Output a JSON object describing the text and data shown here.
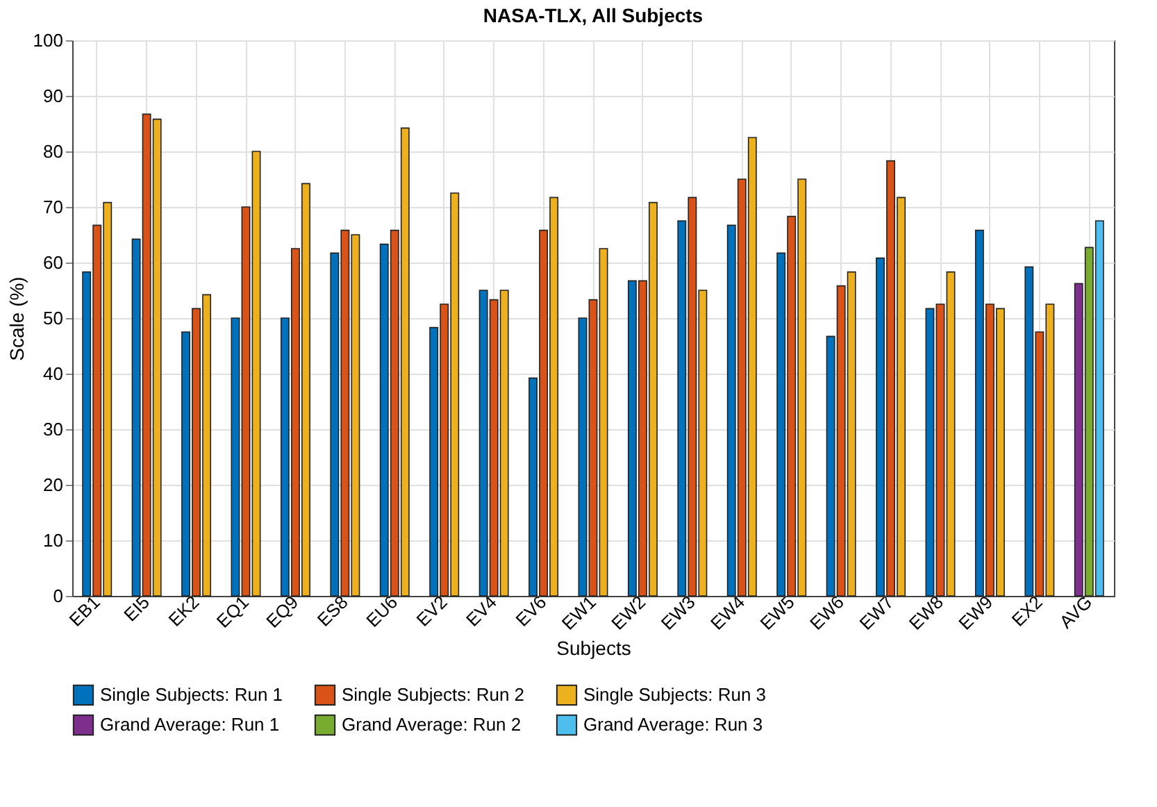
{
  "chart_data": {
    "type": "bar",
    "title": "NASA-TLX, All Subjects",
    "xlabel": "Subjects",
    "ylabel": "Scale (%)",
    "categories": [
      "EB1",
      "EI5",
      "EK2",
      "EQ1",
      "EQ9",
      "ES8",
      "EU6",
      "EV2",
      "EV4",
      "EV6",
      "EW1",
      "EW2",
      "EW3",
      "EW4",
      "EW5",
      "EW6",
      "EW7",
      "EW8",
      "EW9",
      "EX2",
      "AVG"
    ],
    "series": [
      {
        "name": "Single Subjects: Run 1",
        "color": "#0072bd",
        "values": [
          58.3,
          64.2,
          47.5,
          50,
          50,
          61.7,
          63.3,
          48.3,
          55,
          39.2,
          50,
          56.7,
          67.5,
          66.7,
          61.7,
          46.7,
          60.8,
          51.7,
          65.8,
          59.2,
          null
        ]
      },
      {
        "name": "Single Subjects: Run 2",
        "color": "#d95319",
        "values": [
          66.7,
          86.7,
          51.7,
          70,
          62.5,
          65.8,
          65.8,
          52.5,
          53.3,
          65.8,
          53.3,
          56.7,
          71.7,
          75,
          68.3,
          55.8,
          78.3,
          52.5,
          52.5,
          47.5,
          null
        ]
      },
      {
        "name": "Single Subjects: Run 3",
        "color": "#edb120",
        "values": [
          70.8,
          85.8,
          54.2,
          80,
          74.2,
          65,
          84.2,
          72.5,
          55,
          71.7,
          62.5,
          70.8,
          55,
          82.5,
          75,
          58.3,
          71.7,
          58.3,
          51.7,
          52.5,
          null
        ]
      },
      {
        "name": "Grand Average: Run 1",
        "color": "#7e2f8e",
        "values": [
          null,
          null,
          null,
          null,
          null,
          null,
          null,
          null,
          null,
          null,
          null,
          null,
          null,
          null,
          null,
          null,
          null,
          null,
          null,
          null,
          56.2
        ]
      },
      {
        "name": "Grand Average: Run 2",
        "color": "#77ac30",
        "values": [
          null,
          null,
          null,
          null,
          null,
          null,
          null,
          null,
          null,
          null,
          null,
          null,
          null,
          null,
          null,
          null,
          null,
          null,
          null,
          null,
          62.7
        ]
      },
      {
        "name": "Grand Average: Run 3",
        "color": "#4dbeee",
        "values": [
          null,
          null,
          null,
          null,
          null,
          null,
          null,
          null,
          null,
          null,
          null,
          null,
          null,
          null,
          null,
          null,
          null,
          null,
          null,
          null,
          67.5
        ]
      }
    ],
    "ylim": [
      0,
      100
    ],
    "yticks": [
      0,
      10,
      20,
      30,
      40,
      50,
      60,
      70,
      80,
      90,
      100
    ],
    "grid": true,
    "legend": "bottom"
  }
}
